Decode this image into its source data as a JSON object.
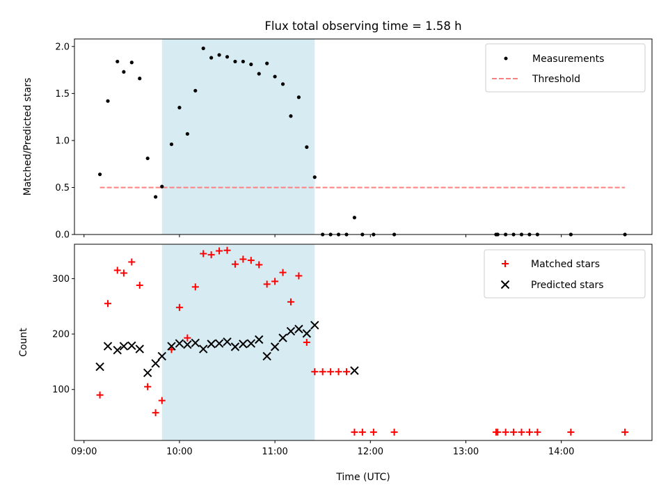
{
  "title": "Flux total observing time = 1.58 h",
  "colors": {
    "measurement": "#000000",
    "threshold": "#ff7f7f",
    "matched": "#ff0000",
    "predicted": "#000000",
    "observing_window": "#add8e6"
  },
  "chart_data": [
    {
      "type": "scatter",
      "ylabel": "Matched/Predicted stars",
      "xlim": [
        "08:54",
        "14:57"
      ],
      "ylim": [
        0,
        2.08
      ],
      "yticks": [
        0.0,
        0.5,
        1.0,
        1.5,
        2.0
      ],
      "ytick_labels": [
        "0.0",
        "0.5",
        "1.0",
        "1.5",
        "2.0"
      ],
      "shaded_region": [
        "09:49",
        "11:25"
      ],
      "legend": {
        "position": "upper right",
        "entries": [
          "Measurements",
          "Threshold"
        ]
      },
      "threshold": {
        "name": "Threshold",
        "y": 0.5,
        "x": [
          "09:10",
          "14:40"
        ],
        "style": "dashed"
      },
      "series": [
        {
          "name": "Measurements",
          "marker": "dot",
          "points": [
            [
              "09:10",
              0.64
            ],
            [
              "09:15",
              1.42
            ],
            [
              "09:21",
              1.84
            ],
            [
              "09:25",
              1.73
            ],
            [
              "09:30",
              1.83
            ],
            [
              "09:35",
              1.66
            ],
            [
              "09:40",
              0.81
            ],
            [
              "09:45",
              0.4
            ],
            [
              "09:49",
              0.51
            ],
            [
              "09:55",
              0.96
            ],
            [
              "10:00",
              1.35
            ],
            [
              "10:05",
              1.07
            ],
            [
              "10:10",
              1.53
            ],
            [
              "10:15",
              1.98
            ],
            [
              "10:20",
              1.88
            ],
            [
              "10:25",
              1.91
            ],
            [
              "10:30",
              1.89
            ],
            [
              "10:35",
              1.84
            ],
            [
              "10:40",
              1.84
            ],
            [
              "10:45",
              1.81
            ],
            [
              "10:50",
              1.71
            ],
            [
              "10:55",
              1.82
            ],
            [
              "11:00",
              1.68
            ],
            [
              "11:05",
              1.6
            ],
            [
              "11:10",
              1.26
            ],
            [
              "11:15",
              1.46
            ],
            [
              "11:20",
              0.93
            ],
            [
              "11:25",
              0.61
            ],
            [
              "11:30",
              0.0
            ],
            [
              "11:35",
              0.0
            ],
            [
              "11:40",
              0.0
            ],
            [
              "11:45",
              0.0
            ],
            [
              "11:50",
              0.18
            ],
            [
              "11:55",
              0.0
            ],
            [
              "12:02",
              0.0
            ],
            [
              "12:15",
              0.0
            ],
            [
              "13:19",
              0.0
            ],
            [
              "13:20",
              0.0
            ],
            [
              "13:25",
              0.0
            ],
            [
              "13:30",
              0.0
            ],
            [
              "13:35",
              0.0
            ],
            [
              "13:40",
              0.0
            ],
            [
              "13:45",
              0.0
            ],
            [
              "14:06",
              0.0
            ],
            [
              "14:40",
              0.0
            ]
          ]
        }
      ]
    },
    {
      "type": "scatter",
      "xlabel": "Time (UTC)",
      "ylabel": "Count",
      "xlim": [
        "08:54",
        "14:57"
      ],
      "ylim": [
        8,
        362
      ],
      "xticks": [
        "09:00",
        "10:00",
        "11:00",
        "12:00",
        "13:00",
        "14:00"
      ],
      "yticks": [
        100,
        200,
        300
      ],
      "ytick_labels": [
        "100",
        "200",
        "300"
      ],
      "shaded_region": [
        "09:49",
        "11:25"
      ],
      "legend": {
        "position": "upper right",
        "entries": [
          "Matched stars",
          "Predicted stars"
        ]
      },
      "series": [
        {
          "name": "Matched stars",
          "marker": "plus",
          "points": [
            [
              "09:10",
              90
            ],
            [
              "09:15",
              255
            ],
            [
              "09:21",
              315
            ],
            [
              "09:25",
              310
            ],
            [
              "09:30",
              330
            ],
            [
              "09:35",
              288
            ],
            [
              "09:40",
              105
            ],
            [
              "09:45",
              58
            ],
            [
              "09:49",
              80
            ],
            [
              "09:55",
              172
            ],
            [
              "10:00",
              248
            ],
            [
              "10:05",
              193
            ],
            [
              "10:10",
              285
            ],
            [
              "10:15",
              345
            ],
            [
              "10:20",
              343
            ],
            [
              "10:25",
              350
            ],
            [
              "10:30",
              351
            ],
            [
              "10:35",
              326
            ],
            [
              "10:40",
              335
            ],
            [
              "10:45",
              333
            ],
            [
              "10:50",
              325
            ],
            [
              "10:55",
              290
            ],
            [
              "11:00",
              295
            ],
            [
              "11:05",
              311
            ],
            [
              "11:10",
              258
            ],
            [
              "11:15",
              305
            ],
            [
              "11:20",
              185
            ],
            [
              "11:25",
              132
            ],
            [
              "11:30",
              132
            ],
            [
              "11:35",
              132
            ],
            [
              "11:40",
              132
            ],
            [
              "11:45",
              132
            ],
            [
              "11:50",
              23
            ],
            [
              "11:55",
              23
            ],
            [
              "12:02",
              23
            ],
            [
              "12:15",
              23
            ],
            [
              "13:19",
              23
            ],
            [
              "13:20",
              23
            ],
            [
              "13:25",
              23
            ],
            [
              "13:30",
              23
            ],
            [
              "13:35",
              23
            ],
            [
              "13:40",
              23
            ],
            [
              "13:45",
              23
            ],
            [
              "14:06",
              23
            ],
            [
              "14:40",
              23
            ]
          ]
        },
        {
          "name": "Predicted stars",
          "marker": "x",
          "points": [
            [
              "09:10",
              141
            ],
            [
              "09:15",
              178
            ],
            [
              "09:21",
              171
            ],
            [
              "09:25",
              178
            ],
            [
              "09:30",
              179
            ],
            [
              "09:35",
              173
            ],
            [
              "09:40",
              130
            ],
            [
              "09:45",
              147
            ],
            [
              "09:49",
              160
            ],
            [
              "09:55",
              178
            ],
            [
              "10:00",
              183
            ],
            [
              "10:05",
              181
            ],
            [
              "10:10",
              184
            ],
            [
              "10:15",
              173
            ],
            [
              "10:20",
              182
            ],
            [
              "10:25",
              183
            ],
            [
              "10:30",
              186
            ],
            [
              "10:35",
              177
            ],
            [
              "10:40",
              182
            ],
            [
              "10:45",
              183
            ],
            [
              "10:50",
              190
            ],
            [
              "10:55",
              160
            ],
            [
              "11:00",
              177
            ],
            [
              "11:05",
              193
            ],
            [
              "11:10",
              205
            ],
            [
              "11:15",
              209
            ],
            [
              "11:20",
              201
            ],
            [
              "11:25",
              216
            ],
            [
              "11:50",
              134
            ]
          ]
        }
      ]
    }
  ]
}
